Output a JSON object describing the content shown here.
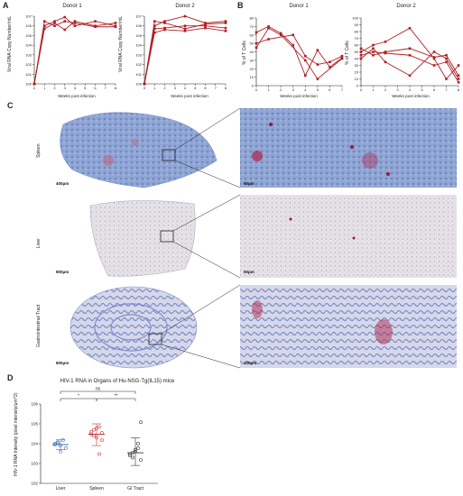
{
  "panels": {
    "A": {
      "letter": "A",
      "donor1_title": "Donor 1",
      "donor2_title": "Donor 2",
      "ylabel": "Viral RNA Copy Number/mL",
      "xlabel": "Weeks post infection"
    },
    "B": {
      "letter": "B",
      "donor1_title": "Donor 1",
      "donor2_title": "Donor 2",
      "ylabel": "% of T Cells",
      "xlabel": "Weeks post infection"
    },
    "C": {
      "letter": "C",
      "rows": [
        {
          "label": "Spleen",
          "scale_left": "400μm",
          "scale_right": "60μm"
        },
        {
          "label": "Liver",
          "scale_left": "800μm",
          "scale_right": "50μm"
        },
        {
          "label": "Gastrointestinal Tract",
          "scale_left": "800μm",
          "scale_right": "100μm"
        }
      ]
    },
    "D": {
      "letter": "D",
      "title": "HIV-1 RNA in Organs of Hu-NSG-Tg(IL15) mice",
      "ylabel": "HIV-1 RNA Intensity (pixel intensity/μm^2)",
      "sig_ns": "ns",
      "sig_1": "*",
      "sig_2": "**"
    }
  },
  "chart_data": [
    {
      "type": "line",
      "title": "Donor 1",
      "xlabel": "Weeks post infection",
      "ylabel": "Viral RNA Copy Number/mL",
      "x": [
        0,
        1,
        2,
        3,
        4,
        5,
        6,
        7,
        8
      ],
      "xlim": [
        0,
        8
      ],
      "yscale": "log",
      "ylim": [
        1,
        10000000
      ],
      "ytick_labels": [
        "10^0",
        "10^1",
        "10^2",
        "10^3",
        "10^4",
        "10^5",
        "10^6",
        "10^7"
      ],
      "color": "#b01e24",
      "series": [
        {
          "x": [
            0,
            1,
            2,
            3,
            4,
            6,
            8
          ],
          "values": [
            1,
            1000000,
            3000000,
            8000000,
            1000000,
            3000000,
            1000000
          ]
        },
        {
          "x": [
            0,
            1,
            2,
            3,
            4,
            6,
            8
          ],
          "values": [
            1,
            3000000,
            1000000,
            3000000,
            2000000,
            800000,
            800000
          ]
        },
        {
          "x": [
            0,
            1,
            2,
            3,
            4,
            6,
            8
          ],
          "values": [
            1,
            500000,
            2000000,
            400000,
            3000000,
            1000000,
            2000000
          ]
        }
      ]
    },
    {
      "type": "line",
      "title": "Donor 2",
      "xlabel": "Weeks post infection",
      "ylabel": "Viral RNA Copy Number/mL",
      "x": [
        0,
        1,
        2,
        3,
        4,
        5,
        6,
        7,
        8
      ],
      "xlim": [
        0,
        8
      ],
      "yscale": "log",
      "ylim": [
        1,
        10000000
      ],
      "ytick_labels": [
        "10^0",
        "10^1",
        "10^2",
        "10^3",
        "10^4",
        "10^5",
        "10^6",
        "10^7"
      ],
      "color": "#b01e24",
      "series": [
        {
          "x": [
            0,
            1,
            2,
            4,
            6,
            8
          ],
          "values": [
            1,
            1000000,
            3000000,
            10000000,
            2000000,
            3000000
          ]
        },
        {
          "x": [
            0,
            1,
            2,
            4,
            6,
            8
          ],
          "values": [
            1,
            3000000,
            2000000,
            500000,
            1500000,
            2000000
          ]
        },
        {
          "x": [
            0,
            1,
            2,
            4,
            6,
            8
          ],
          "values": [
            1,
            500000,
            600000,
            1000000,
            1000000,
            600000
          ]
        },
        {
          "x": [
            0,
            1,
            2,
            4,
            6,
            8
          ],
          "values": [
            1,
            200000,
            400000,
            300000,
            600000,
            300000
          ]
        }
      ]
    },
    {
      "type": "line",
      "title": "Donor 1",
      "xlabel": "Weeks post infection",
      "ylabel": "% of T Cells",
      "x": [
        0,
        1,
        2,
        3,
        4,
        5,
        6,
        7
      ],
      "xlim": [
        0,
        7
      ],
      "ylim": [
        0,
        80
      ],
      "yticks": [
        0,
        10,
        20,
        30,
        40,
        50,
        60,
        70,
        80
      ],
      "color": "#b01e24",
      "series": [
        {
          "x": [
            0,
            1,
            2,
            3,
            4,
            5,
            6,
            7
          ],
          "values": [
            63,
            70,
            62,
            48,
            12,
            42,
            22,
            33
          ]
        },
        {
          "x": [
            0,
            1,
            2,
            4,
            5,
            7
          ],
          "values": [
            45,
            68,
            60,
            30,
            8,
            32
          ]
        },
        {
          "x": [
            0,
            1,
            3,
            4,
            5,
            6,
            7
          ],
          "values": [
            50,
            55,
            60,
            35,
            25,
            28,
            35
          ]
        }
      ]
    },
    {
      "type": "line",
      "title": "Donor 2",
      "xlabel": "Weeks post infection",
      "ylabel": "% of T Cells",
      "x": [
        0,
        1,
        2,
        3,
        4,
        5,
        6,
        7,
        8
      ],
      "xlim": [
        0,
        8
      ],
      "ylim": [
        0,
        100
      ],
      "yticks": [
        0,
        10,
        20,
        30,
        40,
        50,
        60,
        70,
        80,
        90,
        100
      ],
      "color": "#b01e24",
      "series": [
        {
          "x": [
            0,
            1,
            2,
            4,
            6,
            7,
            8
          ],
          "values": [
            50,
            60,
            65,
            85,
            40,
            10,
            30
          ]
        },
        {
          "x": [
            0,
            1,
            2,
            4,
            6,
            7,
            8
          ],
          "values": [
            45,
            50,
            48,
            45,
            30,
            35,
            5
          ]
        },
        {
          "x": [
            0,
            1,
            2,
            4,
            6,
            7,
            8
          ],
          "values": [
            40,
            55,
            35,
            15,
            50,
            40,
            10
          ]
        },
        {
          "x": [
            0,
            1,
            2,
            4,
            6,
            7,
            8
          ],
          "values": [
            55,
            45,
            50,
            55,
            42,
            45,
            15
          ]
        }
      ]
    },
    {
      "type": "scatter",
      "title": "HIV-1 RNA in Organs of Hu-NSG-Tg(IL15) mice",
      "ylabel": "HIV-1 RNA Intensity (pixel intensity/μm^2)",
      "categories": [
        "Liver",
        "Spleen",
        "GI Tract"
      ],
      "yscale": "log",
      "ylim": [
        100,
        1000000
      ],
      "ytick_labels": [
        "10^2",
        "10^3",
        "10^4",
        "10^5",
        "10^6"
      ],
      "series": [
        {
          "name": "Liver",
          "color": "#3d6fb6",
          "values": [
            10000,
            12000,
            8000,
            15000,
            6000,
            9000,
            11000,
            4000
          ],
          "mean": 9000,
          "sd_low": 5000,
          "sd_high": 16000
        },
        {
          "name": "Spleen",
          "color": "#c8343b",
          "values": [
            30000,
            50000,
            20000,
            70000,
            15000,
            40000,
            25000,
            60000,
            3000,
            35000
          ],
          "mean": 30000,
          "sd_low": 8000,
          "sd_high": 100000
        },
        {
          "name": "GI Tract",
          "color": "#333333",
          "values": [
            3000,
            2000,
            4000,
            6000,
            1500,
            2500,
            3500,
            5000,
            10000,
            120000
          ],
          "mean": 3500,
          "sd_low": 800,
          "sd_high": 20000
        }
      ]
    }
  ]
}
